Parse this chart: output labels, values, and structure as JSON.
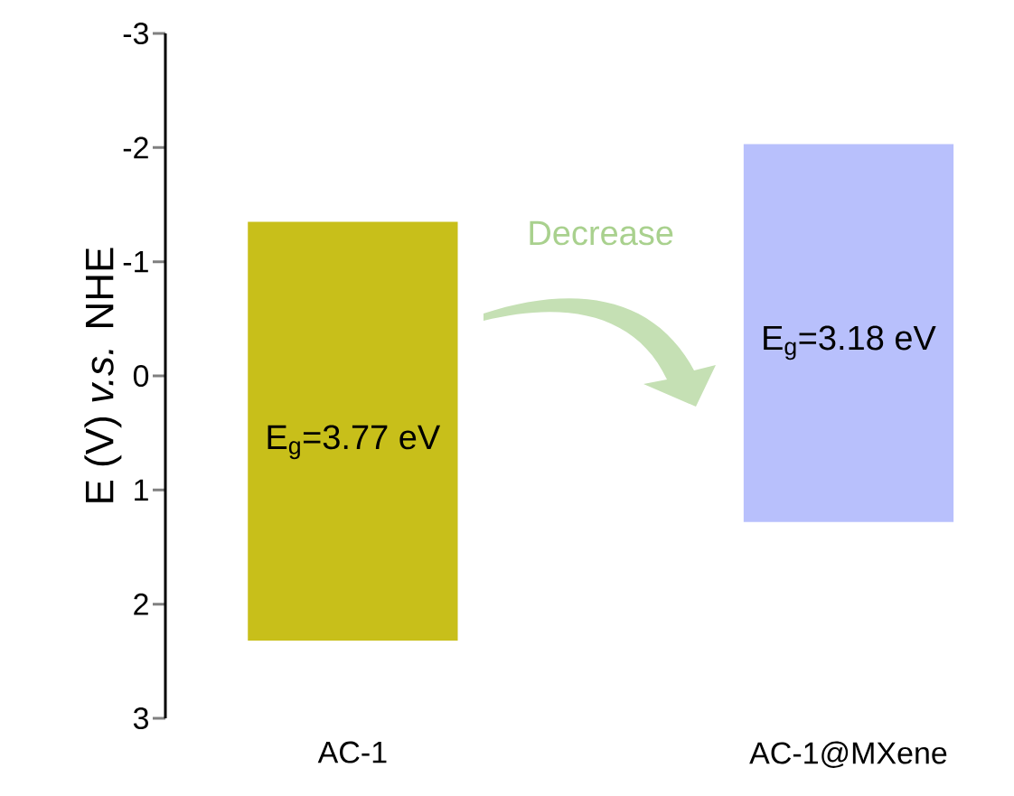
{
  "chart_data": {
    "type": "bar",
    "categories": [
      "AC-1",
      "AC-1@MXene"
    ],
    "base": [
      -1.35,
      -2.03
    ],
    "values": [
      3.67,
      3.31
    ],
    "colors": [
      "#c8bf1a",
      "#b8c0fc"
    ],
    "ylim": [
      3,
      -3
    ],
    "yticks": [
      -3,
      -2,
      -1,
      0,
      1,
      2,
      3
    ],
    "ylabel": "E (V) *v.s.* NHE",
    "annotations": [
      "E$_{g}$=3.77 eV",
      "E$_{g}$=3.18 eV",
      "Decrease"
    ]
  }
}
